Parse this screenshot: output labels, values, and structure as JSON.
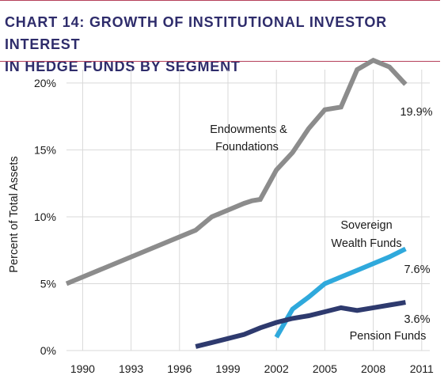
{
  "title": {
    "line1": "CHART 14: GROWTH OF INSTITUTIONAL INVESTOR INTEREST",
    "line2": "IN HEDGE FUNDS BY SEGMENT"
  },
  "colors": {
    "title": "#2e2c6b",
    "rule": "#b5405a",
    "grid": "#d9d9d9",
    "endowments": "#8c8c8c",
    "sovereign": "#2fa9dc",
    "pension": "#2e3a6e"
  },
  "chart_data": {
    "type": "line",
    "ylabel": "Percent of Total Assets",
    "xlabel": "",
    "xlim": [
      1989,
      2011.5
    ],
    "ylim": [
      0,
      21
    ],
    "x_ticks": [
      1990,
      1993,
      1996,
      1999,
      2002,
      2005,
      2008,
      2011
    ],
    "x_tick_labels": [
      "1990",
      "1993",
      "1996",
      "1999",
      "2002",
      "2005",
      "2008",
      "2011"
    ],
    "y_ticks": [
      0,
      5,
      10,
      15,
      20
    ],
    "y_tick_labels": [
      "0%",
      "5%",
      "10%",
      "15%",
      "20%"
    ],
    "grid": true,
    "series": [
      {
        "name": "Endowments & Foundations",
        "color": "#8c8c8c",
        "x": [
          1989,
          1997,
          1998,
          1999,
          2000,
          2000.5,
          2001,
          2002,
          2003,
          2004,
          2005,
          2006,
          2007,
          2008,
          2009,
          2010
        ],
        "y": [
          5.0,
          9.0,
          10.0,
          10.5,
          11.0,
          11.2,
          11.3,
          13.5,
          14.8,
          16.6,
          18.0,
          18.2,
          21.0,
          21.7,
          21.2,
          19.9
        ]
      },
      {
        "name": "Sovereign Wealth Funds",
        "color": "#2fa9dc",
        "x": [
          2002,
          2003,
          2004,
          2005,
          2006,
          2007,
          2008,
          2009,
          2010
        ],
        "y": [
          1.0,
          3.1,
          4.0,
          5.0,
          5.5,
          6.0,
          6.5,
          7.0,
          7.6
        ]
      },
      {
        "name": "Pension Funds",
        "color": "#2e3a6e",
        "x": [
          1997,
          1998,
          1999,
          2000,
          2001,
          2002,
          2003,
          2004,
          2005,
          2006,
          2007,
          2008,
          2009,
          2010
        ],
        "y": [
          0.3,
          0.6,
          0.9,
          1.2,
          1.7,
          2.1,
          2.4,
          2.6,
          2.9,
          3.2,
          3.0,
          3.2,
          3.4,
          3.6
        ]
      }
    ],
    "annotations": {
      "endowments_label_1": "Endowments &",
      "endowments_label_2": "Foundations",
      "endowments_end_value": "19.9%",
      "sovereign_label_1": "Sovereign",
      "sovereign_label_2": "Wealth Funds",
      "sovereign_end_value": "7.6%",
      "pension_end_value": "3.6%",
      "pension_label": "Pension Funds"
    }
  }
}
